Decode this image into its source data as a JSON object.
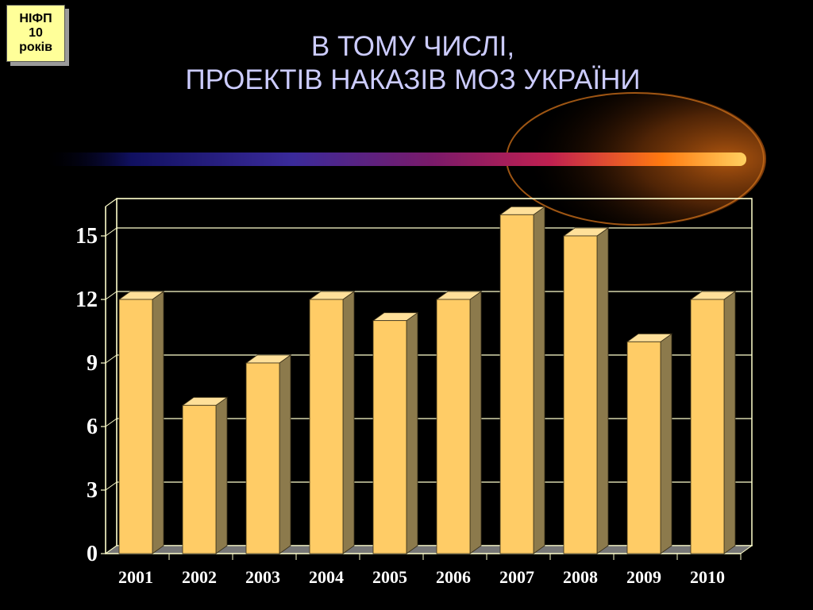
{
  "badge": {
    "line1": "НІФП",
    "line2": "10",
    "line3": "років"
  },
  "title": {
    "line1": "В ТОМУ ЧИСЛІ,",
    "line2": "ПРОЕКТІВ НАКАЗІВ МОЗ УКРАЇНИ"
  },
  "colors": {
    "background": "#000000",
    "title": "#ccccff",
    "bar_front": "#ffcc66",
    "bar_side": "#8c7a4c",
    "bar_top": "#ffe09a",
    "grid": "#ffffcc",
    "badge_bg": "#ffff99"
  },
  "chart_data": {
    "type": "bar",
    "categories": [
      "2001",
      "2002",
      "2003",
      "2004",
      "2005",
      "2006",
      "2007",
      "2008",
      "2009",
      "2010"
    ],
    "values": [
      12,
      7,
      9,
      12,
      11,
      12,
      16,
      15,
      10,
      12
    ],
    "y_ticks": [
      "0",
      "3",
      "6",
      "9",
      "12",
      "15"
    ],
    "ylim": [
      0,
      16.5
    ],
    "grid": true,
    "style": "3d-column"
  }
}
